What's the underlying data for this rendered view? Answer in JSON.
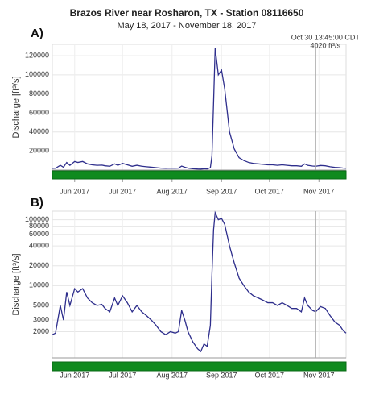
{
  "title": "Brazos River near Rosharon, TX - Station 08116650",
  "subtitle": "May 18, 2017 - November 18, 2017",
  "chart_data": [
    {
      "type": "line",
      "panel_label": "A)",
      "y_label": "Discharge [ft³/s]",
      "log_scale": false,
      "grid": true,
      "color": "#2e2e8c",
      "x": [
        "2017-05-18",
        "2017-05-20",
        "2017-05-23",
        "2017-05-25",
        "2017-05-27",
        "2017-05-29",
        "2017-06-01",
        "2017-06-03",
        "2017-06-06",
        "2017-06-09",
        "2017-06-12",
        "2017-06-15",
        "2017-06-18",
        "2017-06-20",
        "2017-06-23",
        "2017-06-26",
        "2017-06-28",
        "2017-07-01",
        "2017-07-04",
        "2017-07-07",
        "2017-07-10",
        "2017-07-13",
        "2017-07-16",
        "2017-07-19",
        "2017-07-22",
        "2017-07-25",
        "2017-07-28",
        "2017-07-31",
        "2017-08-03",
        "2017-08-05",
        "2017-08-07",
        "2017-08-09",
        "2017-08-11",
        "2017-08-14",
        "2017-08-17",
        "2017-08-19",
        "2017-08-21",
        "2017-08-23",
        "2017-08-25",
        "2017-08-26",
        "2017-08-27",
        "2017-08-28",
        "2017-08-30",
        "2017-09-01",
        "2017-09-03",
        "2017-09-06",
        "2017-09-09",
        "2017-09-12",
        "2017-09-15",
        "2017-09-18",
        "2017-09-21",
        "2017-09-24",
        "2017-09-27",
        "2017-09-30",
        "2017-10-03",
        "2017-10-06",
        "2017-10-09",
        "2017-10-12",
        "2017-10-15",
        "2017-10-18",
        "2017-10-21",
        "2017-10-23",
        "2017-10-25",
        "2017-10-28",
        "2017-10-30",
        "2017-11-02",
        "2017-11-05",
        "2017-11-08",
        "2017-11-11",
        "2017-11-14",
        "2017-11-16",
        "2017-11-18"
      ],
      "values": [
        1800,
        1900,
        5000,
        3000,
        8000,
        5000,
        9000,
        8000,
        9000,
        6500,
        5500,
        5000,
        5200,
        4500,
        4000,
        6500,
        5000,
        7000,
        5500,
        4000,
        5000,
        4000,
        3500,
        3000,
        2500,
        2000,
        1800,
        2000,
        1900,
        2000,
        4200,
        3000,
        2000,
        1400,
        1100,
        1000,
        1300,
        1200,
        2500,
        15000,
        70000,
        128000,
        100000,
        105000,
        85000,
        40000,
        22000,
        13000,
        10000,
        8000,
        7000,
        6500,
        6000,
        5500,
        5500,
        5000,
        5500,
        5000,
        4500,
        4500,
        4000,
        6500,
        5000,
        4200,
        4020,
        4800,
        4500,
        3500,
        2800,
        2500,
        2100,
        1900
      ],
      "xlim": [
        "2017-05-18",
        "2017-11-18"
      ],
      "xticks": [
        {
          "value": "2017-06-01",
          "label": "Jun 2017"
        },
        {
          "value": "2017-07-01",
          "label": "Jul 2017"
        },
        {
          "value": "2017-08-01",
          "label": "Aug 2017"
        },
        {
          "value": "2017-09-01",
          "label": "Sep 2017"
        },
        {
          "value": "2017-10-01",
          "label": "Oct 2017"
        },
        {
          "value": "2017-11-01",
          "label": "Nov 2017"
        }
      ],
      "ylim": [
        0,
        132000
      ],
      "yticks": [
        20000,
        40000,
        60000,
        80000,
        100000,
        120000
      ],
      "annotation": {
        "x": "2017-10-30",
        "text": [
          "Oct 30 13:45:00 CDT",
          "4020 ft³/s"
        ]
      }
    },
    {
      "type": "line",
      "panel_label": "B)",
      "y_label": "Discharge [ft³/s]",
      "log_scale": true,
      "grid": true,
      "color": "#2e2e8c",
      "x": [
        "2017-05-18",
        "2017-05-20",
        "2017-05-23",
        "2017-05-25",
        "2017-05-27",
        "2017-05-29",
        "2017-06-01",
        "2017-06-03",
        "2017-06-06",
        "2017-06-09",
        "2017-06-12",
        "2017-06-15",
        "2017-06-18",
        "2017-06-20",
        "2017-06-23",
        "2017-06-26",
        "2017-06-28",
        "2017-07-01",
        "2017-07-04",
        "2017-07-07",
        "2017-07-10",
        "2017-07-13",
        "2017-07-16",
        "2017-07-19",
        "2017-07-22",
        "2017-07-25",
        "2017-07-28",
        "2017-07-31",
        "2017-08-03",
        "2017-08-05",
        "2017-08-07",
        "2017-08-09",
        "2017-08-11",
        "2017-08-14",
        "2017-08-17",
        "2017-08-19",
        "2017-08-21",
        "2017-08-23",
        "2017-08-25",
        "2017-08-26",
        "2017-08-27",
        "2017-08-28",
        "2017-08-30",
        "2017-09-01",
        "2017-09-03",
        "2017-09-06",
        "2017-09-09",
        "2017-09-12",
        "2017-09-15",
        "2017-09-18",
        "2017-09-21",
        "2017-09-24",
        "2017-09-27",
        "2017-09-30",
        "2017-10-03",
        "2017-10-06",
        "2017-10-09",
        "2017-10-12",
        "2017-10-15",
        "2017-10-18",
        "2017-10-21",
        "2017-10-23",
        "2017-10-25",
        "2017-10-28",
        "2017-10-30",
        "2017-11-02",
        "2017-11-05",
        "2017-11-08",
        "2017-11-11",
        "2017-11-14",
        "2017-11-16",
        "2017-11-18"
      ],
      "values": [
        1800,
        1900,
        5000,
        3000,
        8000,
        5000,
        9000,
        8000,
        9000,
        6500,
        5500,
        5000,
        5200,
        4500,
        4000,
        6500,
        5000,
        7000,
        5500,
        4000,
        5000,
        4000,
        3500,
        3000,
        2500,
        2000,
        1800,
        2000,
        1900,
        2000,
        4200,
        3000,
        2000,
        1400,
        1100,
        1000,
        1300,
        1200,
        2500,
        15000,
        70000,
        128000,
        100000,
        105000,
        85000,
        40000,
        22000,
        13000,
        10000,
        8000,
        7000,
        6500,
        6000,
        5500,
        5500,
        5000,
        5500,
        5000,
        4500,
        4500,
        4000,
        6500,
        5000,
        4200,
        4020,
        4800,
        4500,
        3500,
        2800,
        2500,
        2100,
        1900
      ],
      "xlim": [
        "2017-05-18",
        "2017-11-18"
      ],
      "xticks": [
        {
          "value": "2017-06-01",
          "label": "Jun 2017"
        },
        {
          "value": "2017-07-01",
          "label": "Jul 2017"
        },
        {
          "value": "2017-08-01",
          "label": "Aug 2017"
        },
        {
          "value": "2017-09-01",
          "label": "Sep 2017"
        },
        {
          "value": "2017-10-01",
          "label": "Oct 2017"
        },
        {
          "value": "2017-11-01",
          "label": "Nov 2017"
        }
      ],
      "ylim": [
        800,
        135000
      ],
      "yticks": [
        2000,
        3000,
        5000,
        10000,
        20000,
        40000,
        60000,
        80000,
        100000
      ],
      "annotation": {
        "x": "2017-10-30"
      }
    }
  ]
}
